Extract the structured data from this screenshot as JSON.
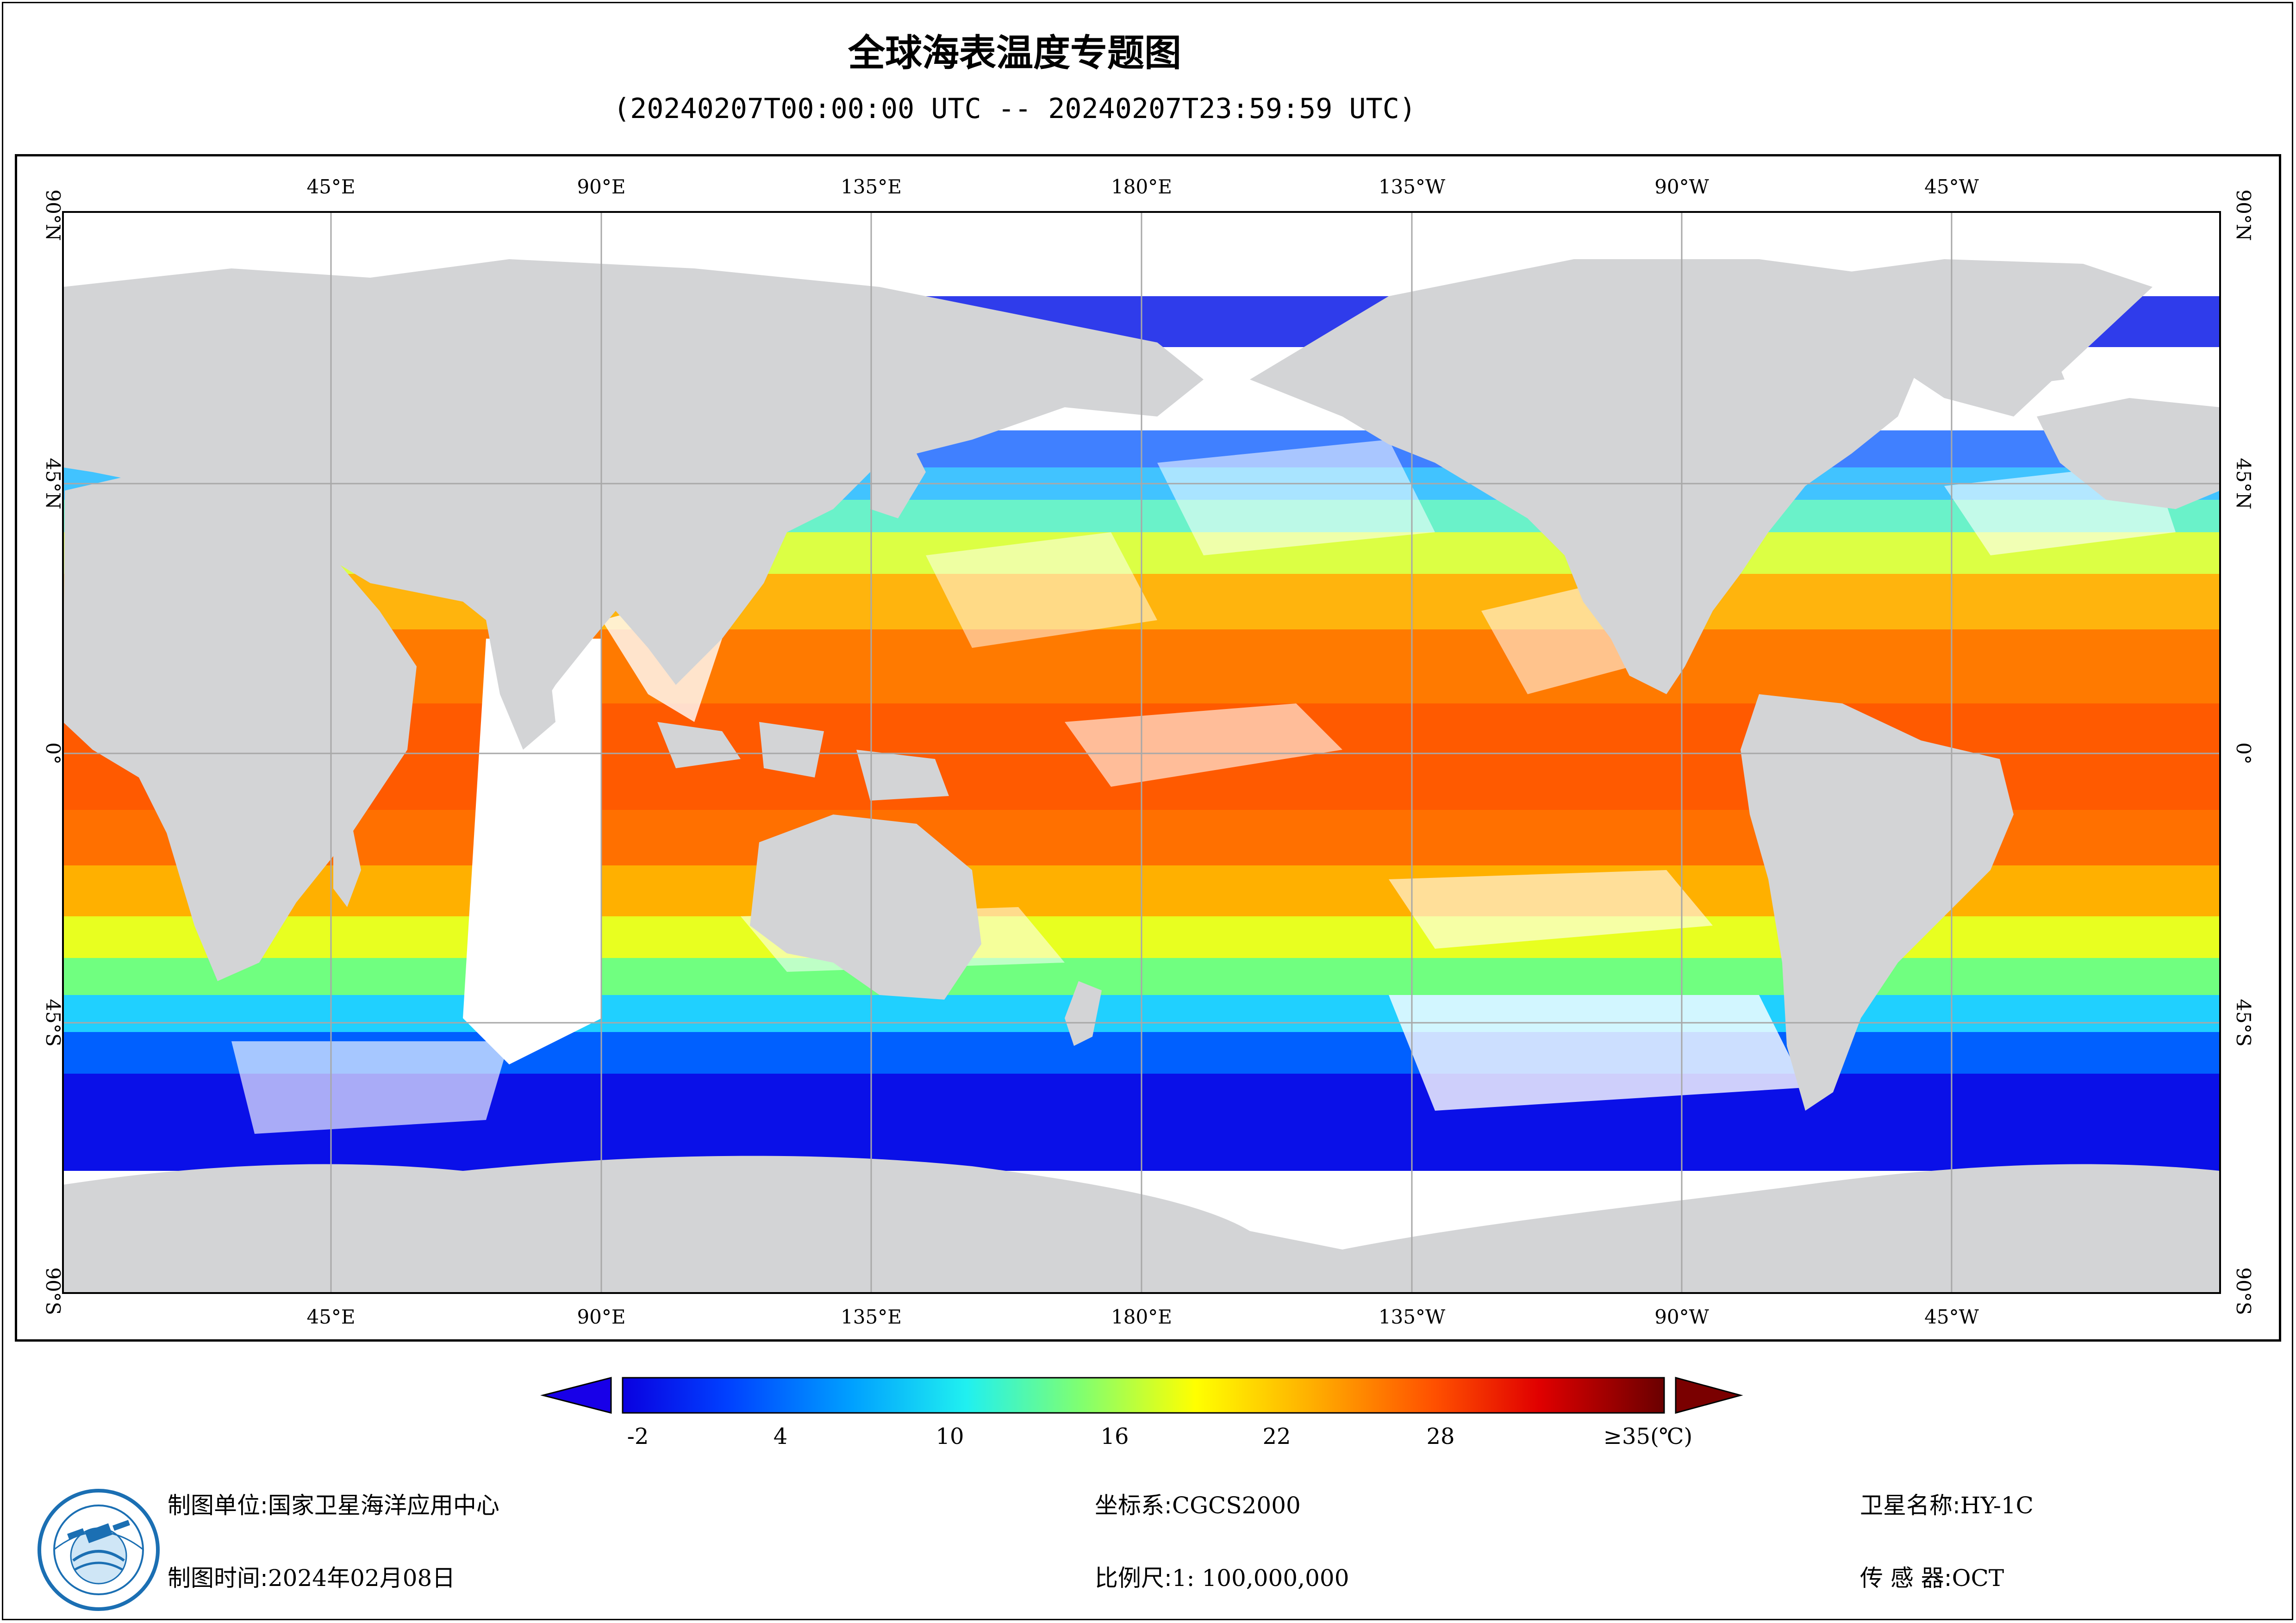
{
  "header": {
    "title": "全球海表温度专题图",
    "subtitle": "(20240207T00:00:00 UTC -- 20240207T23:59:59 UTC)"
  },
  "map": {
    "lon_labels_top": [
      "45°E",
      "90°E",
      "135°E",
      "180°E",
      "135°W",
      "90°W",
      "45°W"
    ],
    "lon_labels_bottom": [
      "45°E",
      "90°E",
      "135°E",
      "180°E",
      "135°W",
      "90°W",
      "45°W"
    ],
    "lat_labels": [
      "90°N",
      "45°N",
      "0°",
      "45°S",
      "90°S"
    ],
    "land_color": "#d3d4d6",
    "cloud_color": "#ffffff",
    "grid_color": "#a8a8a8"
  },
  "colorbar": {
    "tick_labels": [
      "-2",
      "4",
      "10",
      "16",
      "22",
      "28"
    ],
    "max_label": "≥35(℃)",
    "colors": [
      "#0a00e0",
      "#0033ff",
      "#0080ff",
      "#00c8ff",
      "#20ffe0",
      "#7dff7d",
      "#d8ff20",
      "#ffee00",
      "#ffb000",
      "#ff7000",
      "#ff3000",
      "#e00000",
      "#9a0000",
      "#6a0000"
    ],
    "under_color": "#1800e8",
    "over_color": "#7a0000"
  },
  "footer": {
    "org_label": "制图单位:",
    "org_value": "国家卫星海洋应用中心",
    "date_label": "制图时间:",
    "date_value": "2024年02月08日",
    "crs_label": "坐标系:",
    "crs_value": "CGCS2000",
    "scale_label": "比例尺:",
    "scale_value": "1: 100,000,000",
    "sat_label": "卫星名称:",
    "sat_value": "HY-1C",
    "sensor_label": "传 感 器:",
    "sensor_value": "OCT"
  }
}
